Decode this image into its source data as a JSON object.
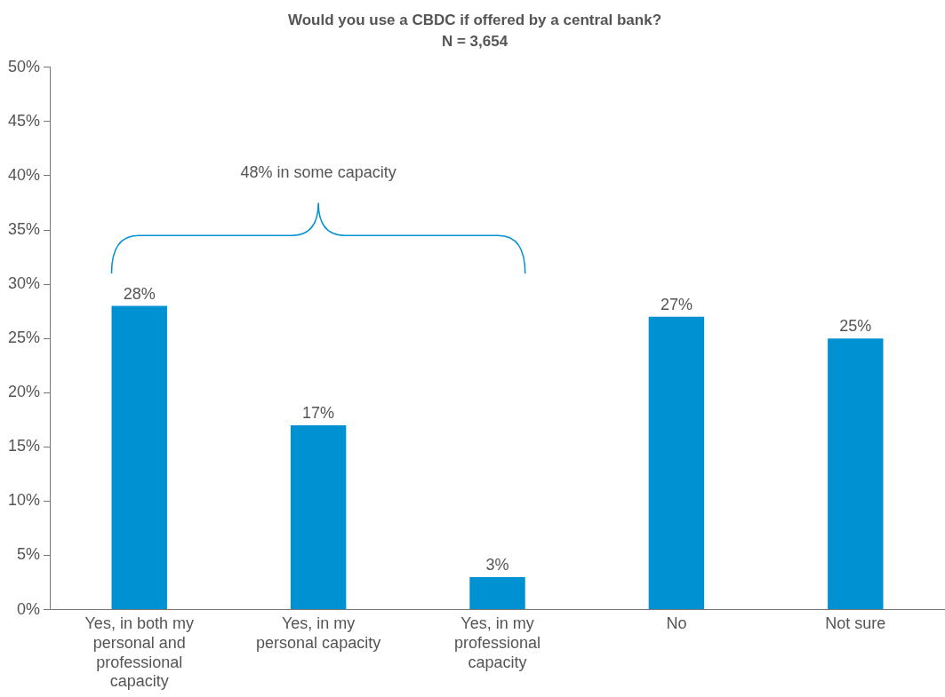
{
  "chart_data": {
    "type": "bar",
    "title": "Would you use a CBDC if offered by a central bank?",
    "subtitle": "N = 3,654",
    "categories": [
      "Yes, in both my personal and professional capacity",
      "Yes, in my personal capacity",
      "Yes, in my professional capacity",
      "No",
      "Not sure"
    ],
    "values": [
      28,
      17,
      3,
      27,
      25
    ],
    "value_labels": [
      "28%",
      "17%",
      "3%",
      "27%",
      "25%"
    ],
    "color": "#0091d2",
    "ylim": [
      0,
      50
    ],
    "yticks": [
      {
        "value": 0,
        "label": "0%"
      },
      {
        "value": 5,
        "label": "5%"
      },
      {
        "value": 10,
        "label": "10%"
      },
      {
        "value": 15,
        "label": "15%"
      },
      {
        "value": 20,
        "label": "20%"
      },
      {
        "value": 25,
        "label": "25%"
      },
      {
        "value": 30,
        "label": "30%"
      },
      {
        "value": 35,
        "label": "35%"
      },
      {
        "value": 40,
        "label": "40%"
      },
      {
        "value": 45,
        "label": "45%"
      },
      {
        "value": 50,
        "label": "50%"
      }
    ],
    "annotations": [
      "48% in some capacity"
    ],
    "grid": false,
    "legend": false
  }
}
